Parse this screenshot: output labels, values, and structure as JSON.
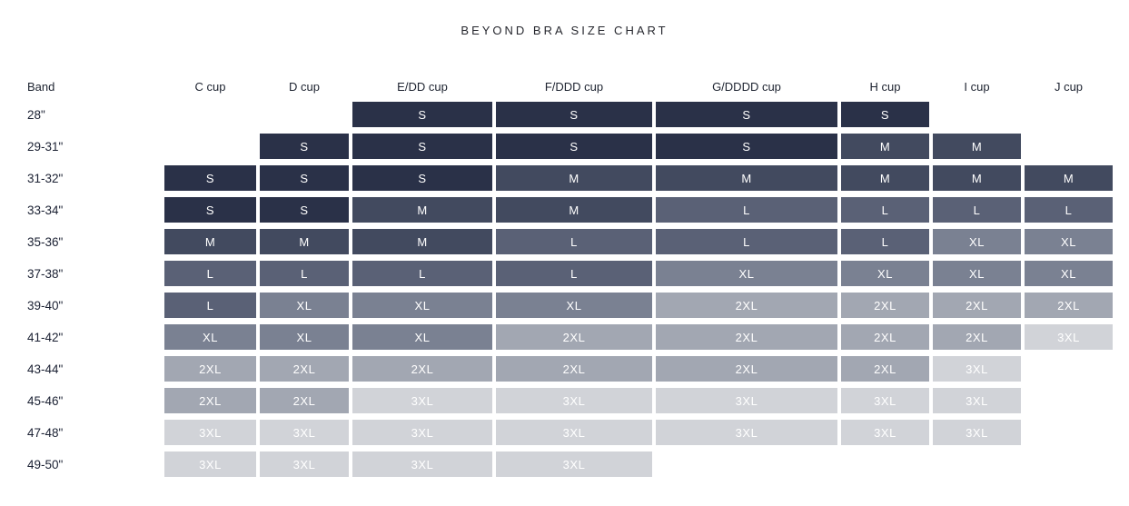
{
  "chart_data": {
    "type": "heatmap",
    "title": "BEYOND BRA SIZE CHART",
    "band_header": "Band",
    "columns": [
      "C cup",
      "D cup",
      "E/DD cup",
      "F/DDD cup",
      "G/DDDD cup",
      "H cup",
      "I cup",
      "J cup"
    ],
    "rows": [
      {
        "band": "28\"",
        "cells": [
          "",
          "",
          "S",
          "S",
          "S",
          "S",
          "",
          ""
        ]
      },
      {
        "band": "29-31\"",
        "cells": [
          "",
          "S",
          "S",
          "S",
          "S",
          "M",
          "M",
          ""
        ]
      },
      {
        "band": "31-32\"",
        "cells": [
          "S",
          "S",
          "S",
          "M",
          "M",
          "M",
          "M",
          "M"
        ]
      },
      {
        "band": "33-34\"",
        "cells": [
          "S",
          "S",
          "M",
          "M",
          "L",
          "L",
          "L",
          "L"
        ]
      },
      {
        "band": "35-36\"",
        "cells": [
          "M",
          "M",
          "M",
          "L",
          "L",
          "L",
          "XL",
          "XL"
        ]
      },
      {
        "band": "37-38\"",
        "cells": [
          "L",
          "L",
          "L",
          "L",
          "XL",
          "XL",
          "XL",
          "XL"
        ]
      },
      {
        "band": "39-40\"",
        "cells": [
          "L",
          "XL",
          "XL",
          "XL",
          "2XL",
          "2XL",
          "2XL",
          "2XL"
        ]
      },
      {
        "band": "41-42\"",
        "cells": [
          "XL",
          "XL",
          "XL",
          "2XL",
          "2XL",
          "2XL",
          "2XL",
          "3XL"
        ]
      },
      {
        "band": "43-44\"",
        "cells": [
          "2XL",
          "2XL",
          "2XL",
          "2XL",
          "2XL",
          "2XL",
          "3XL",
          ""
        ]
      },
      {
        "band": "45-46\"",
        "cells": [
          "2XL",
          "2XL",
          "3XL",
          "3XL",
          "3XL",
          "3XL",
          "3XL",
          ""
        ]
      },
      {
        "band": "47-48\"",
        "cells": [
          "3XL",
          "3XL",
          "3XL",
          "3XL",
          "3XL",
          "3XL",
          "3XL",
          ""
        ]
      },
      {
        "band": "49-50\"",
        "cells": [
          "3XL",
          "3XL",
          "3XL",
          "3XL",
          "",
          "",
          "",
          ""
        ]
      }
    ],
    "size_colors": {
      "S": "#2a3148",
      "M": "#424a5f",
      "L": "#5a6176",
      "XL": "#7a8192",
      "2XL": "#a2a7b2",
      "3XL": "#d1d3d8"
    },
    "cell_text_color": "#ffffff"
  }
}
